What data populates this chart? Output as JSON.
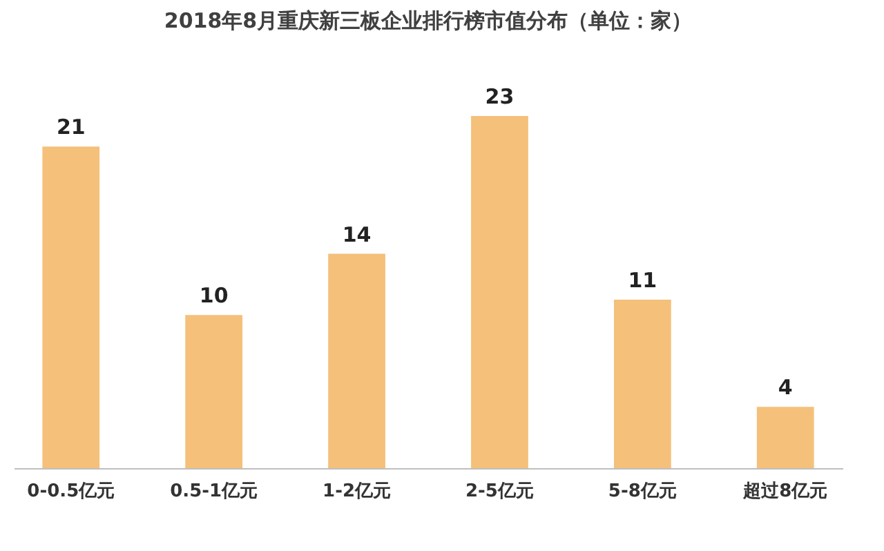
{
  "chart_data": {
    "type": "bar",
    "title": "2018年8月重庆新三板企业排行榜市值分布（单位：家）",
    "categories": [
      "0-0.5亿元",
      "0.5-1亿元",
      "1-2亿元",
      "2-5亿元",
      "5-8亿元",
      "超过8亿元"
    ],
    "values": [
      21,
      10,
      14,
      23,
      11,
      4
    ],
    "color": "#f4c07a",
    "data_labels": true
  }
}
